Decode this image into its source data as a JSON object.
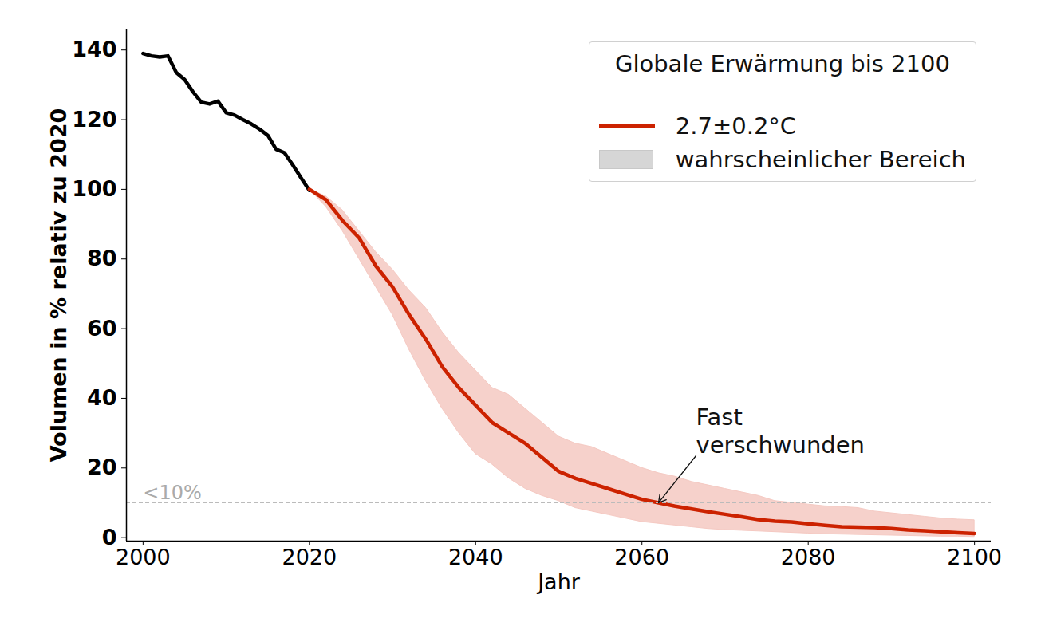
{
  "chart_data": {
    "type": "line",
    "xlabel": "Jahr",
    "ylabel": "Volumen in % relativ zu 2020",
    "xlim": [
      1998,
      2102
    ],
    "ylim": [
      -1,
      146
    ],
    "xticks": [
      2000,
      2020,
      2040,
      2060,
      2080,
      2100
    ],
    "yticks": [
      0,
      20,
      40,
      60,
      80,
      100,
      120,
      140
    ],
    "grid": false,
    "legend": "top-right",
    "legend_title": "Globale Erwärmung bis 2100",
    "series": [
      {
        "type": "line",
        "color": "#000000",
        "x": [
          2000,
          2001,
          2002,
          2003,
          2004,
          2005,
          2006,
          2007,
          2008,
          2009,
          2010,
          2011,
          2012,
          2013,
          2014,
          2015,
          2016,
          2017,
          2018,
          2019,
          2020
        ],
        "values": [
          139,
          138.3,
          138,
          138.3,
          133.5,
          131.5,
          128,
          125,
          124.5,
          125.3,
          122,
          121.3,
          120,
          118.8,
          117.3,
          115.5,
          111.5,
          110.5,
          107,
          103.3,
          99.7
        ]
      },
      {
        "type": "area",
        "name": "wahrscheinlicher Bereich",
        "color": "#f5c9c2",
        "x": [
          2020,
          2022,
          2024,
          2026,
          2028,
          2030,
          2032,
          2034,
          2036,
          2038,
          2040,
          2042,
          2044,
          2046,
          2048,
          2050,
          2052,
          2054,
          2056,
          2058,
          2060,
          2062,
          2064,
          2066,
          2068,
          2070,
          2072,
          2074,
          2076,
          2078,
          2080,
          2082,
          2084,
          2086,
          2088,
          2090,
          2092,
          2094,
          2096,
          2098,
          2100
        ],
        "lower": [
          100,
          95,
          88,
          80,
          72,
          64,
          54,
          45,
          37,
          30,
          24,
          21,
          17,
          14,
          12,
          10.5,
          8.5,
          7.5,
          6.5,
          5.5,
          4.5,
          4,
          3.5,
          3,
          2.5,
          2.2,
          2,
          1.8,
          1.6,
          1.4,
          1.2,
          1,
          0.9,
          0.8,
          0.7,
          0.6,
          0.5,
          0.4,
          0.3,
          0.3,
          0.2
        ],
        "upper": [
          100,
          98,
          94,
          88,
          82,
          77,
          71,
          66,
          59,
          53,
          48,
          43,
          41,
          37,
          33,
          29,
          27,
          26,
          24,
          22,
          20,
          18.5,
          17.5,
          16,
          15,
          14,
          13,
          12,
          10.5,
          10,
          9.5,
          9,
          8.8,
          8.5,
          7.5,
          7,
          6.5,
          6,
          5.5,
          5.2,
          5
        ]
      },
      {
        "type": "line",
        "name": "2.7±0.2°C",
        "color": "#cc2200",
        "x": [
          2020,
          2022,
          2024,
          2026,
          2028,
          2030,
          2032,
          2034,
          2036,
          2038,
          2040,
          2042,
          2044,
          2046,
          2048,
          2050,
          2052,
          2054,
          2056,
          2058,
          2060,
          2062,
          2064,
          2066,
          2068,
          2070,
          2072,
          2074,
          2076,
          2078,
          2080,
          2082,
          2084,
          2086,
          2088,
          2090,
          2092,
          2094,
          2096,
          2098,
          2100
        ],
        "values": [
          100,
          97,
          91,
          86,
          78,
          72,
          64,
          57,
          49,
          43,
          38,
          33,
          30,
          27,
          23,
          19,
          17,
          15.5,
          14,
          12.5,
          11,
          10,
          9,
          8.2,
          7.4,
          6.7,
          6,
          5.2,
          4.7,
          4.5,
          4,
          3.5,
          3.1,
          3,
          2.9,
          2.6,
          2.2,
          2,
          1.7,
          1.4,
          1.2
        ]
      }
    ],
    "reference_line": {
      "value": 10,
      "label": "<10%"
    },
    "annotation": {
      "text": "Fast\nverschwunden",
      "x": 2062,
      "y": 10
    }
  }
}
